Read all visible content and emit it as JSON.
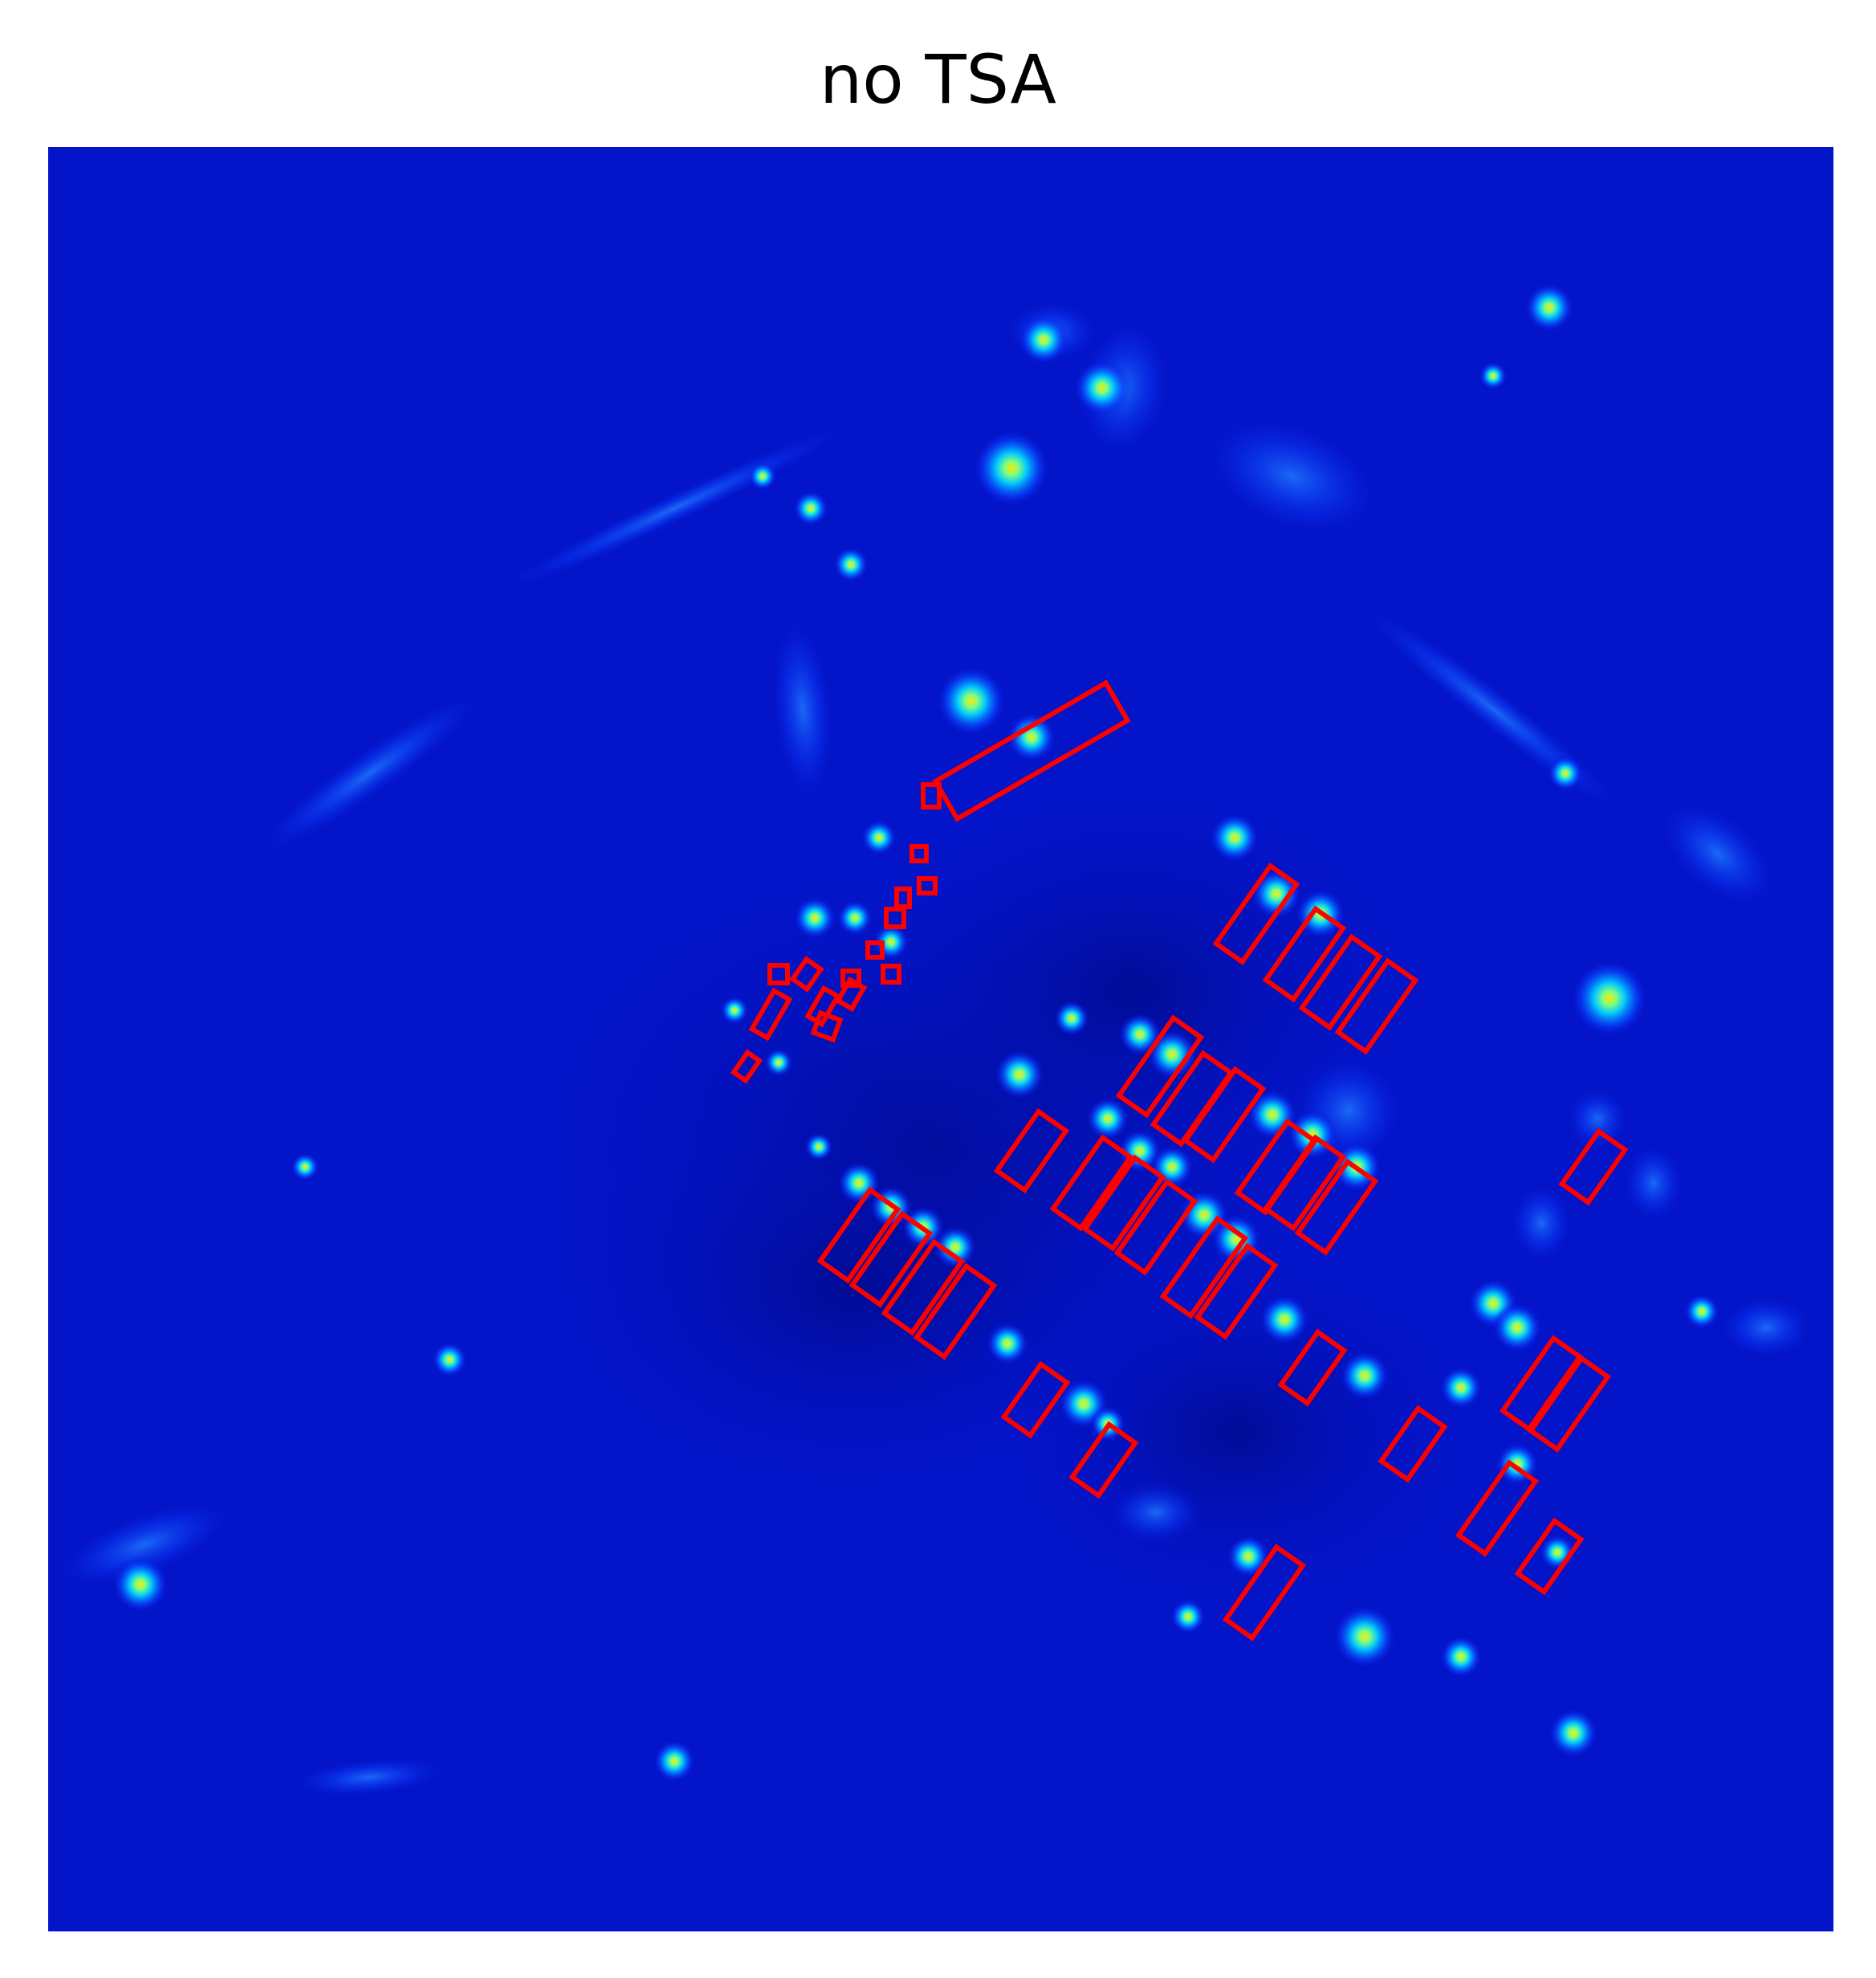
{
  "figure": {
    "title": "no TSA"
  },
  "colors": {
    "background": "#ffffff",
    "heatmap_base": "#0414c8",
    "heatmap_hot_low": "#00c8ff",
    "heatmap_hot_high": "#ffe600",
    "box_stroke": "#ff0000"
  },
  "image": {
    "kind": "attention-heatmap (jet colormap) with red rotated detection boxes",
    "detection_box_count": 46
  }
}
